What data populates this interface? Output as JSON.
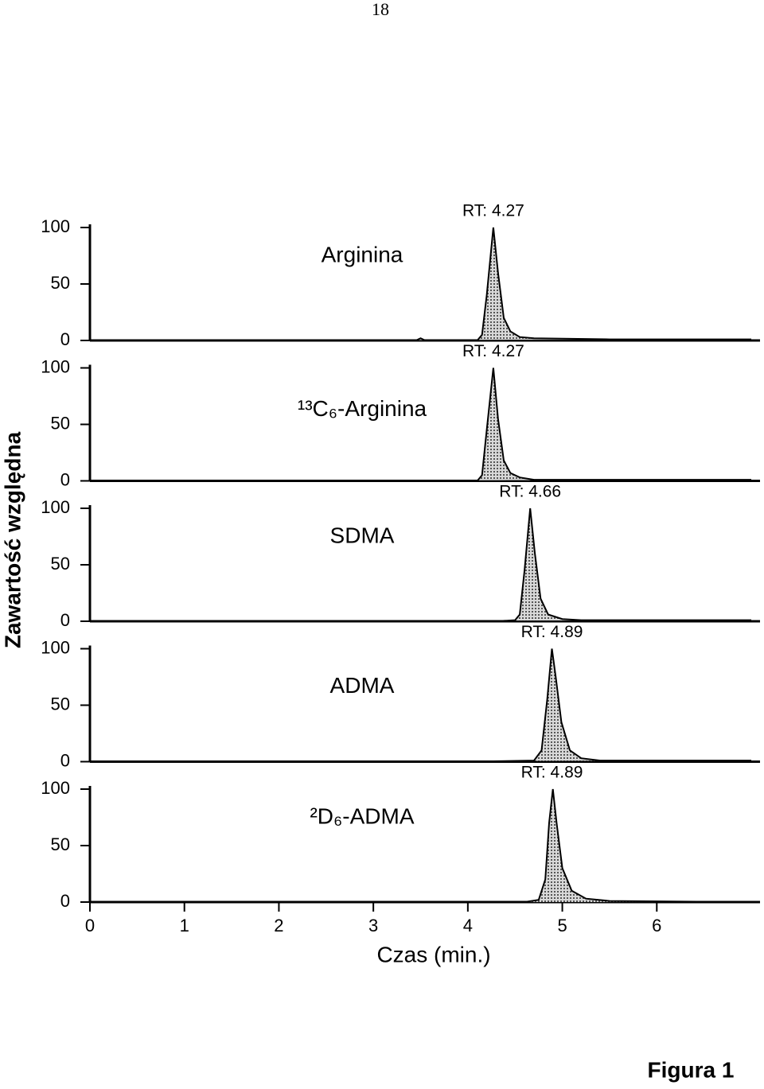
{
  "page": {
    "number": "18",
    "caption": "Figura 1"
  },
  "chart_data": [
    {
      "type": "line",
      "title": "Arginina",
      "annotation": "RT: 4.27",
      "annotation_x": 4.27,
      "x": [
        0,
        3.45,
        3.5,
        3.55,
        4.1,
        4.15,
        4.2,
        4.27,
        4.32,
        4.38,
        4.45,
        4.55,
        4.7,
        5.5,
        7
      ],
      "values": [
        0,
        0,
        2,
        0,
        0,
        5,
        40,
        100,
        60,
        20,
        8,
        3,
        2,
        1,
        1
      ],
      "xlim": [
        0,
        7
      ],
      "ylim": [
        0,
        100
      ],
      "yticks": [
        0,
        50,
        100
      ],
      "color": "#000000"
    },
    {
      "type": "line",
      "title": "¹³C₆-Arginina",
      "annotation": "RT: 4.27",
      "annotation_x": 4.27,
      "x": [
        0,
        4.1,
        4.15,
        4.2,
        4.27,
        4.32,
        4.38,
        4.45,
        4.55,
        4.7,
        7
      ],
      "values": [
        0,
        0,
        5,
        45,
        100,
        55,
        18,
        7,
        3,
        1,
        1
      ],
      "xlim": [
        0,
        7
      ],
      "ylim": [
        0,
        100
      ],
      "yticks": [
        0,
        50,
        100
      ],
      "color": "#000000"
    },
    {
      "type": "line",
      "title": "SDMA",
      "annotation": "RT: 4.66",
      "annotation_x": 4.66,
      "ylabel": "Zawartość względna",
      "x": [
        0,
        4.3,
        4.5,
        4.55,
        4.6,
        4.66,
        4.71,
        4.77,
        4.85,
        5.0,
        5.2,
        7
      ],
      "values": [
        0,
        0,
        1,
        6,
        45,
        100,
        60,
        20,
        6,
        2,
        1,
        1
      ],
      "xlim": [
        0,
        7
      ],
      "ylim": [
        0,
        100
      ],
      "yticks": [
        0,
        50,
        100
      ],
      "color": "#000000"
    },
    {
      "type": "line",
      "title": "ADMA",
      "annotation": "RT: 4.89",
      "annotation_x": 4.89,
      "x": [
        0,
        4.0,
        4.7,
        4.78,
        4.84,
        4.89,
        4.93,
        4.99,
        5.08,
        5.2,
        5.4,
        7
      ],
      "values": [
        0,
        0,
        1,
        10,
        55,
        100,
        75,
        35,
        10,
        3,
        1,
        1
      ],
      "xlim": [
        0,
        7
      ],
      "ylim": [
        0,
        100
      ],
      "yticks": [
        0,
        50,
        100
      ],
      "color": "#000000"
    },
    {
      "type": "line",
      "title": "²D₆-ADMA",
      "annotation": "RT: 4.89",
      "annotation_x": 4.89,
      "xlabel": "Czas (min.)",
      "x": [
        0,
        4.6,
        4.75,
        4.82,
        4.86,
        4.9,
        4.94,
        5.0,
        5.1,
        5.25,
        5.5,
        7
      ],
      "values": [
        0,
        0,
        2,
        20,
        70,
        100,
        70,
        30,
        10,
        3,
        1,
        0
      ],
      "xlim": [
        0,
        7
      ],
      "xticks": [
        0,
        1,
        2,
        3,
        4,
        5,
        6
      ],
      "ylim": [
        0,
        100
      ],
      "yticks": [
        0,
        50,
        100
      ],
      "color": "#000000"
    }
  ]
}
